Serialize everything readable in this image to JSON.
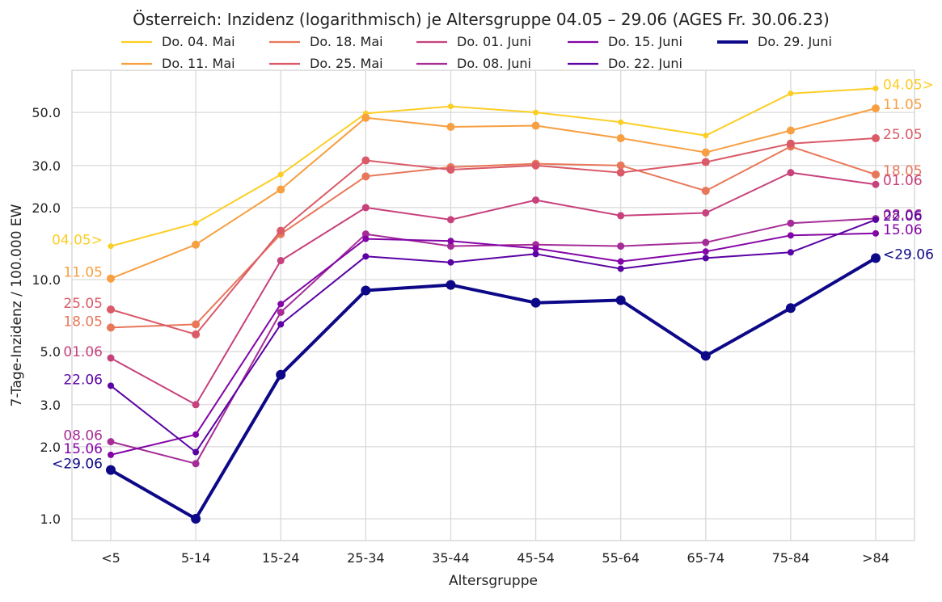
{
  "chart_data": {
    "type": "line",
    "title": "Österreich: Inzidenz (logarithmisch) je Altersgruppe 04.05 – 29.06 (AGES Fr. 30.06.23)",
    "xlabel": "Altersgruppe",
    "ylabel": "7-Tage-Inzidenz / 100.000 EW",
    "y_scale": "log",
    "ylim": [
      0.8,
      75
    ],
    "y_ticks": [
      1.0,
      2.0,
      3.0,
      5.0,
      10.0,
      20.0,
      30.0,
      50.0
    ],
    "y_tick_labels": [
      "1.0",
      "2.0",
      "3.0",
      "5.0",
      "10.0",
      "20.0",
      "30.0",
      "50.0"
    ],
    "grid": true,
    "legend_position": "top",
    "categories": [
      "<5",
      "5-14",
      "15-24",
      "25-34",
      "35-44",
      "45-54",
      "55-64",
      "65-74",
      "75-84",
      ">84"
    ],
    "series": [
      {
        "name": "Do. 04. Mai",
        "color": "#fcce25",
        "width": 2,
        "marker": 3.5,
        "left_label": "04.05>",
        "right_label": "04.05>",
        "values": [
          13.8,
          17.2,
          27.5,
          49.5,
          53.0,
          50.0,
          45.5,
          40.0,
          60.0,
          63.0
        ]
      },
      {
        "name": "Do. 11. Mai",
        "color": "#f79f41",
        "width": 2,
        "marker": 5,
        "left_label": "11.05",
        "right_label": "11.05",
        "values": [
          10.1,
          14.0,
          23.8,
          47.5,
          43.5,
          44.0,
          39.0,
          34.0,
          42.0,
          52.0
        ]
      },
      {
        "name": "Do. 18. Mai",
        "color": "#e8775a",
        "width": 2,
        "marker": 5,
        "left_label": "18.05",
        "right_label": "18.05",
        "values": [
          6.3,
          6.5,
          15.5,
          27.0,
          29.5,
          30.5,
          30.0,
          23.5,
          36.0,
          27.5
        ]
      },
      {
        "name": "Do. 25. Mai",
        "color": "#da5a68",
        "width": 2,
        "marker": 5,
        "left_label": "25.05",
        "right_label": "25.05",
        "values": [
          7.5,
          5.9,
          16.0,
          31.5,
          28.8,
          30.0,
          28.0,
          31.0,
          37.0,
          39.0
        ]
      },
      {
        "name": "Do. 01. Juni",
        "color": "#c7417c",
        "width": 2,
        "marker": 4.5,
        "left_label": "01.06",
        "right_label": "01.06",
        "values": [
          4.7,
          3.0,
          12.0,
          20.0,
          17.8,
          21.5,
          18.5,
          19.0,
          28.0,
          25.0
        ]
      },
      {
        "name": "Do. 08. Juni",
        "color": "#a52c96",
        "width": 2,
        "marker": 4.5,
        "left_label": "08.06",
        "right_label": "08.06",
        "values": [
          2.1,
          1.7,
          7.3,
          15.5,
          13.8,
          14.0,
          13.8,
          14.3,
          17.2,
          18.0
        ]
      },
      {
        "name": "Do. 15. Juni",
        "color": "#8305a7",
        "width": 2,
        "marker": 4,
        "left_label": "15.06",
        "right_label": "15.06",
        "values": [
          1.85,
          2.25,
          7.9,
          14.8,
          14.5,
          13.5,
          11.9,
          13.1,
          15.3,
          15.6
        ]
      },
      {
        "name": "Do. 22. Juni",
        "color": "#5a02a3",
        "width": 2,
        "marker": 4,
        "left_label": "22.06",
        "right_label": "22.06",
        "values": [
          3.6,
          1.9,
          6.5,
          12.5,
          11.8,
          12.8,
          11.1,
          12.3,
          13.0,
          17.8
        ]
      },
      {
        "name": "Do. 29. Juni",
        "color": "#0d0887",
        "width": 4,
        "marker": 6,
        "left_label": "<29.06",
        "right_label": "<29.06",
        "values": [
          1.6,
          1.0,
          4.0,
          9.0,
          9.5,
          8.0,
          8.2,
          4.8,
          7.6,
          12.3
        ]
      }
    ]
  }
}
